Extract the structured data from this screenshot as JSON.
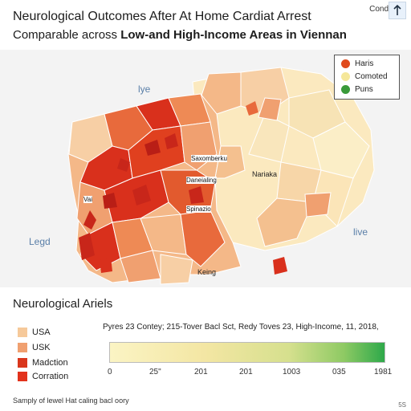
{
  "header": {
    "title": "Neurological Outcomes After At Home Cardiat Arrest",
    "subtitle_prefix": "Comparable across ",
    "subtitle_bold": "Low-and High-Income Areas in Viennan",
    "corner_label": "Cond",
    "corner_icon": "pin-icon"
  },
  "map": {
    "labels": {
      "lye": "lye",
      "legd": "Legd",
      "live": "live",
      "nariaka": "Nariaka",
      "keing": "Keing",
      "district_a": "Saxomberku",
      "district_b": "Daneialing",
      "district_c": "Vai",
      "district_d": "Spinazio"
    },
    "colors": {
      "high": "#d9301c",
      "mid": "#f0a070",
      "low": "#f7cfa5",
      "pale": "#fbe9bf",
      "background": "#f3f3f3"
    }
  },
  "legend": {
    "items": [
      {
        "label": "Haris",
        "color": "#e04a1c"
      },
      {
        "label": "Comoted",
        "color": "#f5e79a"
      },
      {
        "label": "Puns",
        "color": "#3a9a3a"
      }
    ]
  },
  "bottom": {
    "title": "Neurological Ariels",
    "categories": [
      {
        "label": "USA",
        "color": "#f6c99a"
      },
      {
        "label": "USK",
        "color": "#f0a070"
      },
      {
        "label": "Madction",
        "color": "#d9361c"
      },
      {
        "label": "Corration",
        "color": "#e2321c"
      }
    ],
    "caption": "Pyres 23 Contey; 215-Tover Bacl Sct, Redy Toves 23, High-Income, 11, 2018,",
    "scale_ticks": [
      "0",
      "25\"",
      "201",
      "201",
      "1003",
      "035",
      "1981"
    ],
    "footer": "Samply of lewel Hat caling bacl oory",
    "corner_mark": "5S"
  }
}
